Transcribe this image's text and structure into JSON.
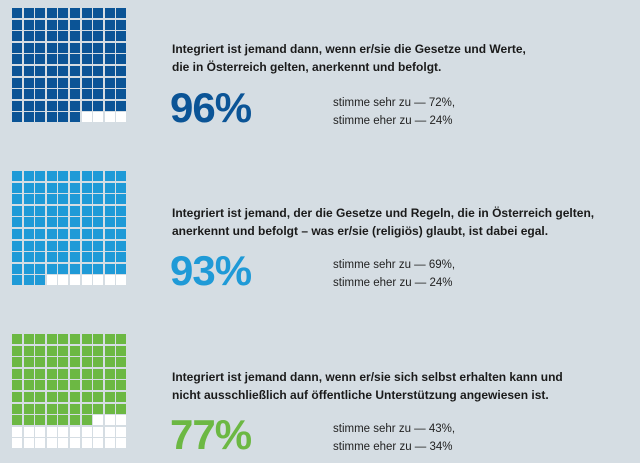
{
  "chart_data": [
    {
      "type": "waffle",
      "statement_lines": [
        "Integriert ist jemand dann, wenn er/sie die Gesetze und Werte,",
        "die in Österreich gelten, anerkennt und befolgt."
      ],
      "value": 96,
      "value_label": "96%",
      "breakdown": [
        {
          "label": "stimme sehr zu — 72%,",
          "value": 72
        },
        {
          "label": "stimme eher zu — 24%",
          "value": 24
        }
      ],
      "color": "#0b5496"
    },
    {
      "type": "waffle",
      "statement_lines": [
        "Integriert ist jemand, der die Gesetze und Regeln, die in Österreich gelten,",
        "anerkennt und befolgt – was er/sie (religiös) glaubt, ist dabei egal."
      ],
      "value": 93,
      "value_label": "93%",
      "breakdown": [
        {
          "label": "stimme sehr zu — 69%,",
          "value": 69
        },
        {
          "label": "stimme eher zu — 24%",
          "value": 24
        }
      ],
      "color": "#1f9ad7"
    },
    {
      "type": "waffle",
      "statement_lines": [
        "Integriert ist jemand dann, wenn er/sie sich selbst erhalten kann und",
        "nicht ausschließlich auf öffentliche Unterstützung angewiesen ist."
      ],
      "value": 77,
      "value_label": "77%",
      "breakdown": [
        {
          "label": "stimme sehr zu — 43%,",
          "value": 43
        },
        {
          "label": "stimme eher zu — 34%",
          "value": 34
        }
      ],
      "color": "#6cb843"
    }
  ]
}
